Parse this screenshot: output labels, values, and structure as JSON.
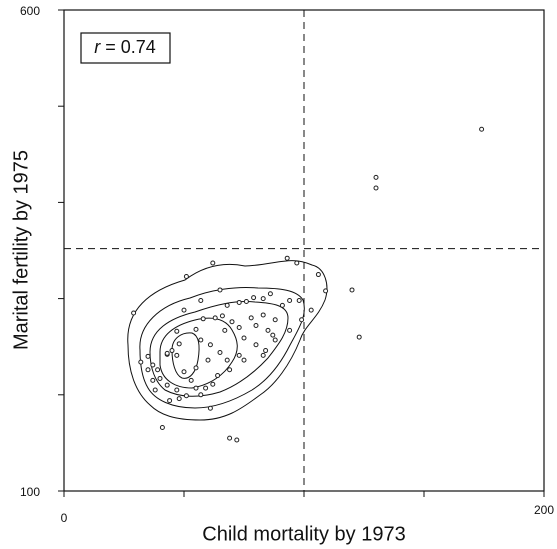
{
  "chart_data": {
    "type": "scatter",
    "x_label": "Child mortality by 1973",
    "y_label": "Marital fertility by 1975",
    "annotation": {
      "symbol": "r",
      "text": "= 0.74"
    },
    "xlim": [
      0,
      200
    ],
    "ylim": [
      100,
      600
    ],
    "xticks": [
      0,
      200
    ],
    "yticks": [
      100,
      600
    ],
    "x_minor_ticks": [
      50,
      100,
      150
    ],
    "y_minor_ticks": [
      200,
      300,
      400,
      500
    ],
    "vlines": [
      100
    ],
    "hlines": [
      352
    ],
    "color": "#222",
    "x": [
      29,
      51,
      62,
      93,
      97,
      106,
      109,
      120,
      123,
      130,
      130,
      174,
      69,
      72,
      41,
      86,
      83,
      79,
      76,
      73,
      68,
      66,
      63,
      58,
      55,
      47,
      48,
      57,
      61,
      67,
      70,
      73,
      78,
      80,
      83,
      85,
      88,
      91,
      94,
      98,
      103,
      99,
      94,
      88,
      84,
      80,
      75,
      73,
      68,
      65,
      60,
      55,
      53,
      50,
      47,
      48,
      51,
      43,
      40,
      37,
      35,
      32,
      43,
      45,
      47,
      43,
      39,
      37,
      55,
      59,
      62,
      64,
      69,
      75,
      83,
      87,
      65,
      57,
      50,
      57,
      61,
      38,
      44,
      35
    ],
    "y": [
      285,
      323,
      337,
      342,
      337,
      325,
      308,
      309,
      260,
      426,
      415,
      476,
      155,
      153,
      166,
      305,
      300,
      301,
      297,
      296,
      293,
      282,
      280,
      279,
      268,
      266,
      253,
      257,
      252,
      267,
      276,
      270,
      280,
      272,
      283,
      267,
      278,
      293,
      298,
      298,
      288,
      278,
      267,
      257,
      246,
      252,
      259,
      241,
      236,
      244,
      236,
      228,
      215,
      224,
      205,
      196,
      199,
      210,
      217,
      231,
      240,
      234,
      242,
      246,
      241,
      243,
      226,
      215,
      207,
      207,
      211,
      220,
      226,
      236,
      241,
      262,
      309,
      298,
      288,
      200,
      186,
      205,
      194,
      226
    ]
  }
}
